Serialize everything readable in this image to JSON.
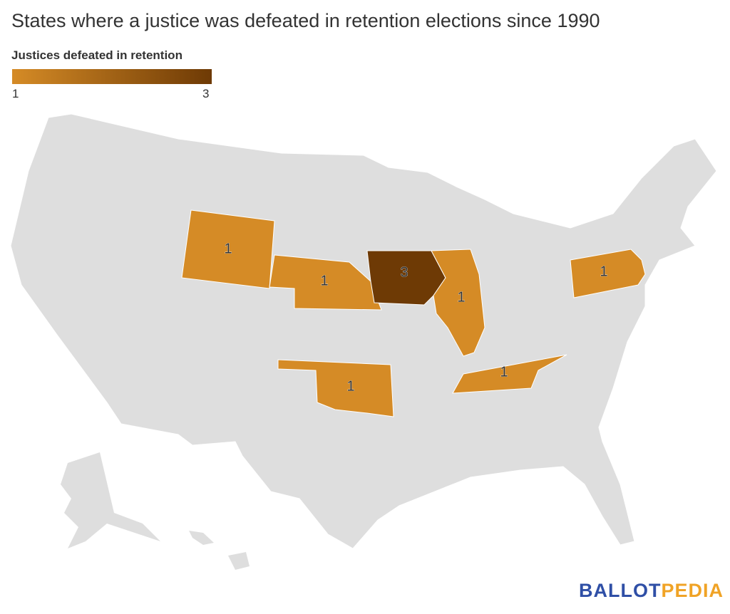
{
  "title": "States where a justice was defeated in retention elections since 1990",
  "legend": {
    "title": "Justices defeated in retention",
    "min": "1",
    "max": "3",
    "min_color": "#d58b26",
    "max_color": "#6e3a05"
  },
  "base_color": "#dedede",
  "states": [
    {
      "name": "Wyoming",
      "value": 1,
      "label": "1",
      "color": "#d58b26"
    },
    {
      "name": "Nebraska",
      "value": 1,
      "label": "1",
      "color": "#d58b26"
    },
    {
      "name": "Iowa",
      "value": 3,
      "label": "3",
      "color": "#6e3a05"
    },
    {
      "name": "Illinois",
      "value": 1,
      "label": "1",
      "color": "#d58b26"
    },
    {
      "name": "Oklahoma",
      "value": 1,
      "label": "1",
      "color": "#d58b26"
    },
    {
      "name": "Tennessee",
      "value": 1,
      "label": "1",
      "color": "#d58b26"
    },
    {
      "name": "Pennsylvania",
      "value": 1,
      "label": "1",
      "color": "#d58b26"
    }
  ],
  "logo": {
    "part1": "BALLOT",
    "part2": "PEDIA"
  }
}
